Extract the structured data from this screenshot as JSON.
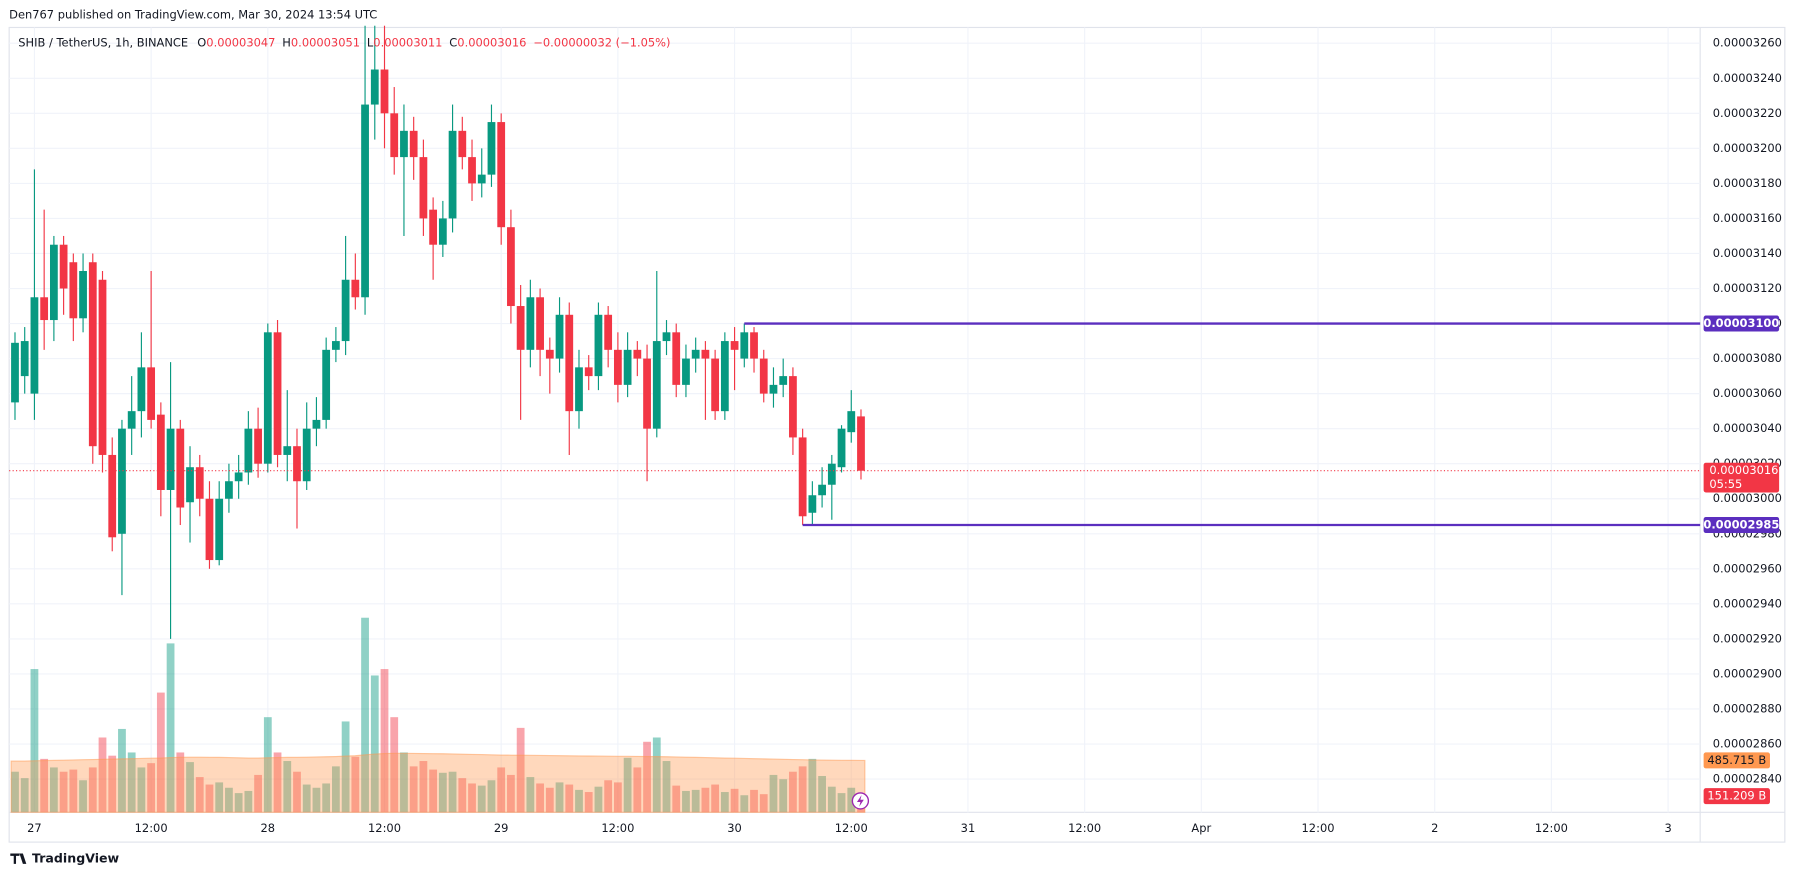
{
  "header": "Den767 published on TradingView.com, Mar 30, 2024 13:54 UTC",
  "footer": "TradingView",
  "chart_data": {
    "type": "candlestick",
    "symbol": "SHIB / TetherUS, 1h, BINANCE",
    "ohlc_legend": [
      {
        "key": "O",
        "value": "0.00003047"
      },
      {
        "key": "H",
        "value": "0.00003051"
      },
      {
        "key": "L",
        "value": "0.00003011"
      },
      {
        "key": "C",
        "value": "0.00003016"
      }
    ],
    "change": "−0.00000032 (−1.05%)",
    "up_color": "#089981",
    "down_color": "#f23645",
    "open": [
      3.055e-05,
      3.07e-05,
      3.06e-05,
      3.115e-05,
      3.102e-05,
      3.145e-05,
      3.135e-05,
      3.103e-05,
      3.135e-05,
      3.125e-05,
      3.025e-05,
      2.98e-05,
      3.04e-05,
      3.05e-05,
      3.075e-05,
      3.048e-05,
      3.005e-05,
      3.04e-05,
      2.998e-05,
      3.018e-05,
      3e-05,
      2.965e-05,
      3e-05,
      3.01e-05,
      3.015e-05,
      3.04e-05,
      3.02e-05,
      3.095e-05,
      3.025e-05,
      3.03e-05,
      3.01e-05,
      3.04e-05,
      3.045e-05,
      3.085e-05,
      3.09e-05,
      3.125e-05,
      3.115e-05,
      3.225e-05,
      3.245e-05,
      3.22e-05,
      3.195e-05,
      3.21e-05,
      3.195e-05,
      3.165e-05,
      3.145e-05,
      3.16e-05,
      3.21e-05,
      3.195e-05,
      3.18e-05,
      3.185e-05,
      3.215e-05,
      3.155e-05,
      3.11e-05,
      3.085e-05,
      3.115e-05,
      3.085e-05,
      3.08e-05,
      3.105e-05,
      3.05e-05,
      3.075e-05,
      3.07e-05,
      3.105e-05,
      3.085e-05,
      3.065e-05,
      3.085e-05,
      3.08e-05,
      3.04e-05,
      3.09e-05,
      3.095e-05,
      3.065e-05,
      3.08e-05,
      3.085e-05,
      3.08e-05,
      3.05e-05,
      3.09e-05,
      3.08e-05,
      3.095e-05,
      3.08e-05,
      3.06e-05,
      3.065e-05,
      3.07e-05,
      3.035e-05,
      2.992e-05,
      3.002e-05,
      3.008e-05,
      3.018e-05,
      3.038e-05,
      3.047e-05
    ],
    "high": [
      3.095e-05,
      3.098e-05,
      3.188e-05,
      3.165e-05,
      3.15e-05,
      3.15e-05,
      3.14e-05,
      3.14e-05,
      3.14e-05,
      3.13e-05,
      3.035e-05,
      3.045e-05,
      3.07e-05,
      3.095e-05,
      3.13e-05,
      3.055e-05,
      3.078e-05,
      3.045e-05,
      3.03e-05,
      3.025e-05,
      3.01e-05,
      3.01e-05,
      3.02e-05,
      3.025e-05,
      3.05e-05,
      3.052e-05,
      3.1e-05,
      3.102e-05,
      3.062e-05,
      3.04e-05,
      3.055e-05,
      3.058e-05,
      3.092e-05,
      3.098e-05,
      3.15e-05,
      3.14e-05,
      3.27e-05,
      3.27e-05,
      3.27e-05,
      3.235e-05,
      3.225e-05,
      3.218e-05,
      3.205e-05,
      3.172e-05,
      3.17e-05,
      3.225e-05,
      3.218e-05,
      3.205e-05,
      3.2e-05,
      3.225e-05,
      3.22e-05,
      3.165e-05,
      3.122e-05,
      3.125e-05,
      3.12e-05,
      3.092e-05,
      3.115e-05,
      3.112e-05,
      3.085e-05,
      3.082e-05,
      3.112e-05,
      3.11e-05,
      3.095e-05,
      3.095e-05,
      3.09e-05,
      3.088e-05,
      3.13e-05,
      3.102e-05,
      3.1e-05,
      3.088e-05,
      3.092e-05,
      3.09e-05,
      3.085e-05,
      3.095e-05,
      3.098e-05,
      3.1e-05,
      3.098e-05,
      3.085e-05,
      3.075e-05,
      3.08e-05,
      3.075e-05,
      3.04e-05,
      3.01e-05,
      3.018e-05,
      3.025e-05,
      3.042e-05,
      3.062e-05,
      3.051e-05
    ],
    "low": [
      3.045e-05,
      3.06e-05,
      3.045e-05,
      3.085e-05,
      3.09e-05,
      3.105e-05,
      3.09e-05,
      3.095e-05,
      3.02e-05,
      3.015e-05,
      2.97e-05,
      2.945e-05,
      3.025e-05,
      3.035e-05,
      3.04e-05,
      2.99e-05,
      2.92e-05,
      2.985e-05,
      2.975e-05,
      2.99e-05,
      2.96e-05,
      2.962e-05,
      2.992e-05,
      3e-05,
      3.008e-05,
      3.012e-05,
      3.015e-05,
      3.018e-05,
      3.01e-05,
      2.983e-05,
      3.005e-05,
      3.03e-05,
      3.04e-05,
      3.078e-05,
      3.082e-05,
      3.108e-05,
      3.105e-05,
      3.205e-05,
      3.2e-05,
      3.185e-05,
      3.15e-05,
      3.182e-05,
      3.15e-05,
      3.125e-05,
      3.138e-05,
      3.152e-05,
      3.188e-05,
      3.17e-05,
      3.172e-05,
      3.178e-05,
      3.145e-05,
      3.1e-05,
      3.045e-05,
      3.075e-05,
      3.07e-05,
      3.06e-05,
      3.072e-05,
      3.025e-05,
      3.04e-05,
      3.062e-05,
      3.062e-05,
      3.075e-05,
      3.055e-05,
      3.058e-05,
      3.07e-05,
      3.01e-05,
      3.035e-05,
      3.082e-05,
      3.058e-05,
      3.058e-05,
      3.072e-05,
      3.045e-05,
      3.045e-05,
      3.045e-05,
      3.062e-05,
      3.075e-05,
      3.072e-05,
      3.055e-05,
      3.052e-05,
      3.058e-05,
      3.025e-05,
      2.985e-05,
      2.985e-05,
      2.995e-05,
      2.988e-05,
      3.015e-05,
      3.032e-05,
      3.011e-05
    ],
    "close": [
      3.089e-05,
      3.09e-05,
      3.115e-05,
      3.102e-05,
      3.145e-05,
      3.12e-05,
      3.103e-05,
      3.13e-05,
      3.03e-05,
      3.025e-05,
      2.978e-05,
      3.04e-05,
      3.05e-05,
      3.075e-05,
      3.045e-05,
      3.005e-05,
      3.04e-05,
      2.995e-05,
      3.018e-05,
      3e-05,
      2.965e-05,
      3e-05,
      3.01e-05,
      3.015e-05,
      3.04e-05,
      3.02e-05,
      3.095e-05,
      3.025e-05,
      3.03e-05,
      3.01e-05,
      3.04e-05,
      3.045e-05,
      3.085e-05,
      3.09e-05,
      3.125e-05,
      3.115e-05,
      3.225e-05,
      3.245e-05,
      3.22e-05,
      3.195e-05,
      3.21e-05,
      3.195e-05,
      3.16e-05,
      3.145e-05,
      3.16e-05,
      3.21e-05,
      3.195e-05,
      3.18e-05,
      3.185e-05,
      3.215e-05,
      3.155e-05,
      3.11e-05,
      3.085e-05,
      3.115e-05,
      3.085e-05,
      3.08e-05,
      3.105e-05,
      3.05e-05,
      3.075e-05,
      3.07e-05,
      3.105e-05,
      3.085e-05,
      3.065e-05,
      3.085e-05,
      3.08e-05,
      3.04e-05,
      3.09e-05,
      3.095e-05,
      3.065e-05,
      3.08e-05,
      3.085e-05,
      3.08e-05,
      3.05e-05,
      3.09e-05,
      3.085e-05,
      3.095e-05,
      3.08e-05,
      3.06e-05,
      3.065e-05,
      3.07e-05,
      3.035e-05,
      2.99e-05,
      3.002e-05,
      3.008e-05,
      3.02e-05,
      3.04e-05,
      3.05e-05,
      3.016e-05
    ],
    "volume": [
      380,
      320,
      1340,
      500,
      420,
      380,
      400,
      300,
      420,
      700,
      530,
      780,
      560,
      420,
      460,
      1120,
      1580,
      560,
      470,
      330,
      260,
      280,
      230,
      180,
      200,
      350,
      890,
      560,
      480,
      380,
      260,
      230,
      270,
      430,
      850,
      520,
      1820,
      1280,
      1340,
      890,
      560,
      430,
      480,
      400,
      370,
      380,
      320,
      270,
      250,
      300,
      420,
      350,
      790,
      330,
      270,
      230,
      280,
      260,
      210,
      190,
      240,
      300,
      280,
      510,
      420,
      660,
      700,
      480,
      250,
      200,
      210,
      230,
      260,
      190,
      220,
      160,
      210,
      170,
      350,
      310,
      380,
      430,
      500,
      340,
      240,
      180,
      230,
      151.209
    ],
    "volume_ma": [
      480,
      480,
      482,
      484,
      486,
      488,
      490,
      492,
      494,
      496,
      498,
      500,
      502,
      504,
      506,
      508,
      512,
      515,
      516,
      516,
      515,
      514,
      512,
      510,
      508,
      508,
      510,
      512,
      514,
      515,
      516,
      518,
      520,
      522,
      526,
      530,
      538,
      545,
      550,
      552,
      552,
      551,
      550,
      549,
      548,
      546,
      544,
      542,
      540,
      538,
      536,
      535,
      534,
      533,
      532,
      531,
      530,
      529,
      528,
      527,
      526,
      525,
      524,
      524,
      523,
      522,
      521,
      520,
      518,
      516,
      514,
      512,
      510,
      508,
      506,
      504,
      502,
      500,
      498,
      496,
      494,
      492,
      490,
      489,
      488,
      487,
      486,
      485.715
    ],
    "volume_ma_label": "485.715 B",
    "volume_label": "151.209 B",
    "ma_color": "#ff9850",
    "xlim": [
      -0.6,
      173.3
    ],
    "xticks": [
      {
        "value": 2,
        "label": "27"
      },
      {
        "value": 14,
        "label": "12:00"
      },
      {
        "value": 26,
        "label": "28"
      },
      {
        "value": 38,
        "label": "12:00"
      },
      {
        "value": 50,
        "label": "29"
      },
      {
        "value": 62,
        "label": "12:00"
      },
      {
        "value": 74,
        "label": "30"
      },
      {
        "value": 86,
        "label": "12:00"
      },
      {
        "value": 98,
        "label": "31"
      },
      {
        "value": 110,
        "label": "12:00"
      },
      {
        "value": 122,
        "label": "Apr"
      },
      {
        "value": 134,
        "label": "12:00"
      },
      {
        "value": 146,
        "label": "2"
      },
      {
        "value": 158,
        "label": "12:00"
      },
      {
        "value": 170,
        "label": "3"
      }
    ],
    "ylim": [
      2.821e-05,
      3.269e-05
    ],
    "yticks": [
      {
        "value": 2.84e-05,
        "label": "0.00002840"
      },
      {
        "value": 2.86e-05,
        "label": "0.00002860"
      },
      {
        "value": 2.88e-05,
        "label": "0.00002880"
      },
      {
        "value": 2.9e-05,
        "label": "0.00002900"
      },
      {
        "value": 2.92e-05,
        "label": "0.00002920"
      },
      {
        "value": 2.94e-05,
        "label": "0.00002940"
      },
      {
        "value": 2.96e-05,
        "label": "0.00002960"
      },
      {
        "value": 2.98e-05,
        "label": "0.00002980"
      },
      {
        "value": 3e-05,
        "label": "0.00003000"
      },
      {
        "value": 3.02e-05,
        "label": "0.00003020"
      },
      {
        "value": 3.04e-05,
        "label": "0.00003040"
      },
      {
        "value": 3.06e-05,
        "label": "0.00003060"
      },
      {
        "value": 3.08e-05,
        "label": "0.00003080"
      },
      {
        "value": 3.1e-05,
        "label": "0.00003100"
      },
      {
        "value": 3.12e-05,
        "label": "0.00003120"
      },
      {
        "value": 3.14e-05,
        "label": "0.00003140"
      },
      {
        "value": 3.16e-05,
        "label": "0.00003160"
      },
      {
        "value": 3.18e-05,
        "label": "0.00003180"
      },
      {
        "value": 3.2e-05,
        "label": "0.00003200"
      },
      {
        "value": 3.22e-05,
        "label": "0.00003220"
      },
      {
        "value": 3.24e-05,
        "label": "0.00003240"
      },
      {
        "value": 3.26e-05,
        "label": "0.00003260"
      }
    ],
    "y2lim": [
      0,
      7340
    ],
    "grid": true,
    "current_price": {
      "value": 3.016e-05,
      "label": "0.00003016",
      "countdown": "05:55"
    },
    "levels": [
      {
        "value": 3.1e-05,
        "label": "0.00003100",
        "from": 75,
        "color": "#5b2fbf"
      },
      {
        "value": 2.985e-05,
        "label": "0.00002985",
        "from": 81,
        "color": "#5b2fbf"
      }
    ]
  }
}
